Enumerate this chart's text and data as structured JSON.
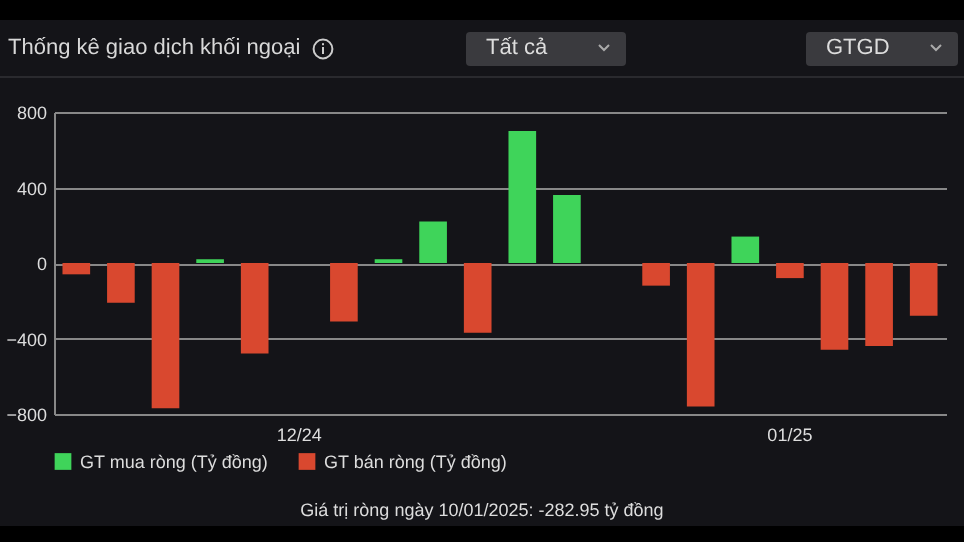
{
  "chart_data": {
    "type": "bar",
    "title": "Thống kê giao dịch khối ngoại",
    "annotations": [
      "Tất cả",
      "GTGD",
      "Giá trị ròng ngày 10/01/2025: -282.95 tỷ đồng"
    ],
    "categories": [
      null,
      null,
      null,
      null,
      null,
      "12/24",
      null,
      null,
      null,
      null,
      null,
      null,
      null,
      null,
      null,
      null,
      "01/25",
      null,
      null,
      null
    ],
    "series": [
      {
        "name": "GT mua ròng (Tỷ đồng)",
        "color": "#3fd45a",
        "values": [
          null,
          null,
          null,
          20,
          null,
          null,
          null,
          20,
          220,
          null,
          700,
          360,
          null,
          null,
          null,
          140,
          null,
          null,
          null,
          null
        ]
      },
      {
        "name": "GT bán ròng (Tỷ đồng)",
        "color": "#d9482f",
        "values": [
          -60,
          -210,
          -770,
          null,
          -480,
          null,
          -310,
          null,
          null,
          -370,
          null,
          null,
          null,
          -120,
          -760,
          null,
          -80,
          -460,
          -440,
          -280
        ]
      }
    ],
    "ylim": [
      -800,
      800
    ],
    "yticks": [
      -800,
      -400,
      0,
      400,
      800
    ],
    "grid": "y",
    "legend": "bottom"
  }
}
